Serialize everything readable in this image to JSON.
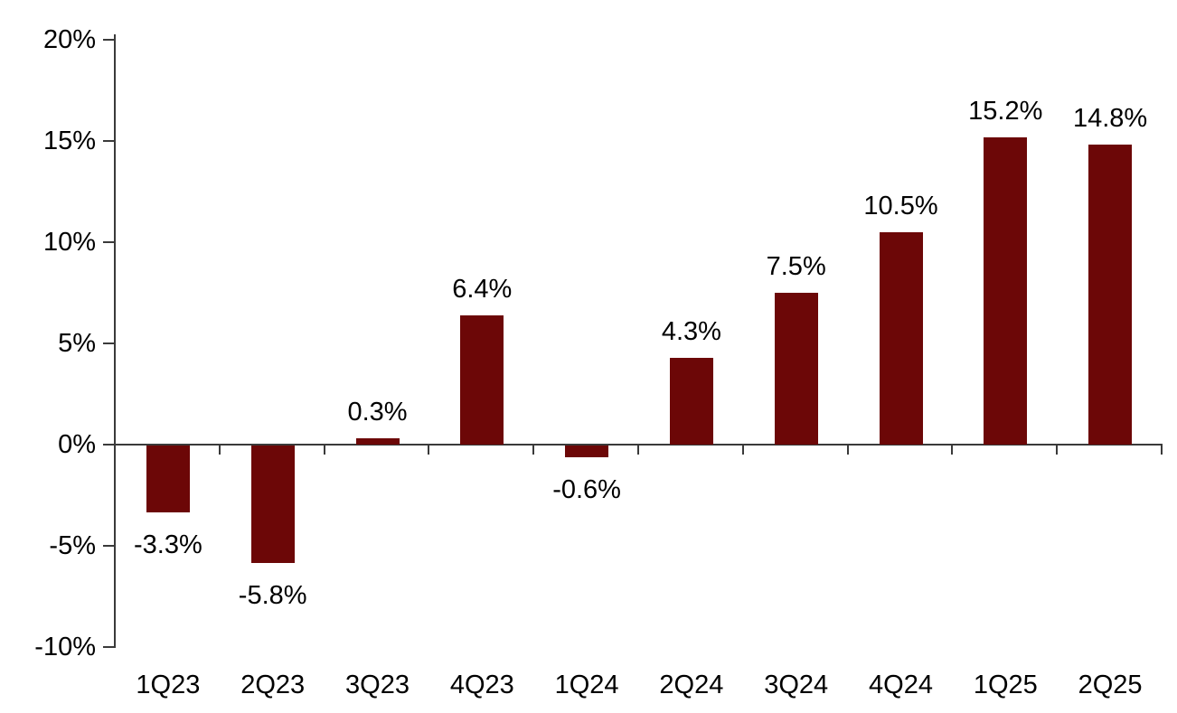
{
  "chart_data": {
    "type": "bar",
    "title": "",
    "categories": [
      "1Q23",
      "2Q23",
      "3Q23",
      "4Q23",
      "1Q24",
      "2Q24",
      "3Q24",
      "4Q24",
      "1Q25",
      "2Q25"
    ],
    "values": [
      -3.3,
      -5.8,
      0.3,
      6.4,
      -0.6,
      4.3,
      7.5,
      10.5,
      15.2,
      14.8
    ],
    "data_labels": [
      "-3.3%",
      "-5.8%",
      "0.3%",
      "6.4%",
      "-0.6%",
      "4.3%",
      "7.5%",
      "10.5%",
      "15.2%",
      "14.8%"
    ],
    "xlabel": "",
    "ylabel": "",
    "ylim": [
      -10,
      20
    ],
    "ytick_step": 5,
    "yticks": [
      {
        "value": 20,
        "label": "20%"
      },
      {
        "value": 15,
        "label": "15%"
      },
      {
        "value": 10,
        "label": "10%"
      },
      {
        "value": 5,
        "label": "5%"
      },
      {
        "value": 0,
        "label": "0%"
      },
      {
        "value": -5,
        "label": "-5%"
      },
      {
        "value": -10,
        "label": "-10%"
      }
    ],
    "grid": false,
    "legend": null,
    "colors": {
      "bar": "#6C0707",
      "axis": "#3a3a3a",
      "text": "#000000",
      "background": "#ffffff"
    }
  }
}
